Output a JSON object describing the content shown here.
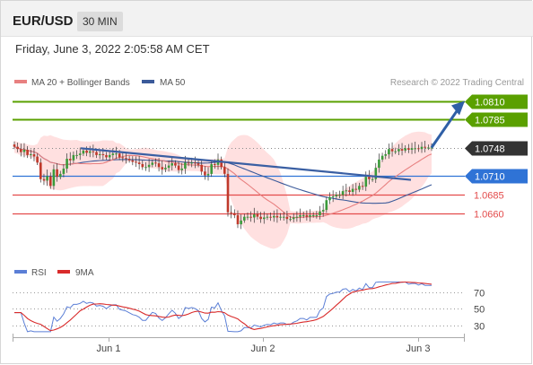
{
  "header": {
    "symbol": "EUR/USD",
    "timeframe": "30 MIN"
  },
  "datetime": "Friday, June 3, 2022 2:05:58 AM CET",
  "credit": "Research © 2022 Trading Central",
  "colors": {
    "up": "#3a9a3a",
    "down": "#c0392b",
    "resistance": "#5aa000",
    "pivot": "#2f73d6",
    "support": "#e34b4b",
    "last": "#333333",
    "ma20": "#e88080",
    "ma50": "#3b5a9a",
    "band": "#ffd6d6",
    "rsi": "#5b7fd6",
    "rsi_ma": "#d92b2b"
  },
  "chart_data": [
    {
      "type": "line",
      "title": "",
      "legend": [
        {
          "name": "MA 20 + Bollinger Bands",
          "color": "#e88080"
        },
        {
          "name": "MA 50",
          "color": "#3b5a9a"
        }
      ],
      "x_ticks": [
        "Jun 1",
        "Jun 2",
        "Jun 3"
      ],
      "levels": [
        {
          "value": 1.081,
          "label": "1.0810",
          "kind": "resistance"
        },
        {
          "value": 1.0785,
          "label": "1.0785",
          "kind": "resistance"
        },
        {
          "value": 1.0748,
          "label": "1.0748",
          "kind": "last"
        },
        {
          "value": 1.071,
          "label": "1.0710",
          "kind": "pivot"
        },
        {
          "value": 1.0685,
          "label": "1.0685",
          "kind": "support"
        },
        {
          "value": 1.066,
          "label": "1.0660",
          "kind": "support"
        }
      ],
      "closes": [
        1.0749,
        1.0746,
        1.0742,
        1.0745,
        1.0738,
        1.0739,
        1.0736,
        1.0728,
        1.0706,
        1.0704,
        1.071,
        1.0697,
        1.0719,
        1.0709,
        1.0713,
        1.072,
        1.0733,
        1.0731,
        1.0738,
        1.0738,
        1.074,
        1.0744,
        1.0741,
        1.0743,
        1.0742,
        1.0738,
        1.0739,
        1.0738,
        1.0735,
        1.0738,
        1.074,
        1.074,
        1.0735,
        1.0734,
        1.0733,
        1.0731,
        1.0729,
        1.0728,
        1.0726,
        1.0722,
        1.0722,
        1.0725,
        1.0728,
        1.0727,
        1.0722,
        1.0719,
        1.0721,
        1.0724,
        1.0727,
        1.0724,
        1.0718,
        1.072,
        1.0728,
        1.0727,
        1.0728,
        1.0727,
        1.0725,
        1.0716,
        1.0711,
        1.0713,
        1.0726,
        1.0725,
        1.0732,
        1.0722,
        1.0713,
        1.0662,
        1.0661,
        1.0658,
        1.0646,
        1.0651,
        1.0656,
        1.0656,
        1.0655,
        1.0659,
        1.0656,
        1.0653,
        1.0655,
        1.0656,
        1.0655,
        1.0657,
        1.0655,
        1.0656,
        1.0656,
        1.0653,
        1.0653,
        1.0655,
        1.0656,
        1.0658,
        1.0658,
        1.0656,
        1.0658,
        1.0658,
        1.0658,
        1.0663,
        1.0665,
        1.0678,
        1.0682,
        1.0683,
        1.0685,
        1.0685,
        1.069,
        1.0691,
        1.0689,
        1.0693,
        1.0692,
        1.0697,
        1.0696,
        1.0709,
        1.0706,
        1.0706,
        1.0721,
        1.0732,
        1.0737,
        1.0739,
        1.0746,
        1.0743,
        1.0743,
        1.0746,
        1.0744,
        1.0747,
        1.0745,
        1.0747,
        1.0747,
        1.0746,
        1.0749,
        1.0748,
        1.0748,
        1.0748
      ],
      "arrow_target": 1.081,
      "ylim": [
        1.062,
        1.083
      ]
    },
    {
      "type": "line",
      "legend": [
        {
          "name": "RSI",
          "color": "#5b7fd6"
        },
        {
          "name": "9MA",
          "color": "#d92b2b"
        }
      ],
      "y_ticks": [
        "70",
        "50",
        "30"
      ],
      "ylim": [
        20,
        85
      ]
    }
  ]
}
